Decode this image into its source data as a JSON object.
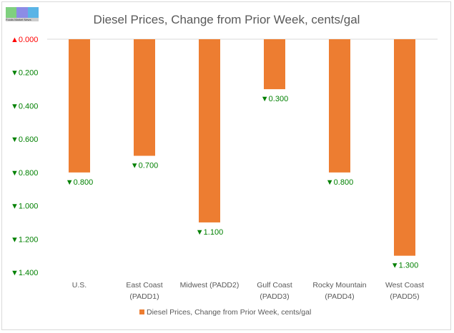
{
  "logo": {
    "text": "FMN",
    "subtext": "Foods Market News"
  },
  "chart_data": {
    "type": "bar",
    "title": "Diesel Prices, Change from Prior Week, cents/gal",
    "categories": [
      [
        "U.S."
      ],
      [
        "East Coast",
        "(PADD1)"
      ],
      [
        "Midwest (PADD2)"
      ],
      [
        "Gulf Coast",
        "(PADD3)"
      ],
      [
        "Rocky Mountain",
        "(PADD4)"
      ],
      [
        "West Coast",
        "(PADD5)"
      ]
    ],
    "series": [
      {
        "name": "Diesel Prices, Change from Prior Week, cents/gal",
        "values": [
          -0.8,
          -0.7,
          -1.1,
          -0.3,
          -0.8,
          -1.3
        ],
        "color": "#ED7D31"
      }
    ],
    "data_labels": [
      "▼0.800",
      "▼0.700",
      "▼1.100",
      "▼0.300",
      "▼0.800",
      "▼1.300"
    ],
    "yticks": [
      0,
      -0.2,
      -0.4,
      -0.6,
      -0.8,
      -1.0,
      -1.2,
      -1.4
    ],
    "ytick_labels": [
      "▲0.000",
      "▼0.200",
      "▼0.400",
      "▼0.600",
      "▼0.800",
      "▼1.000",
      "▼1.200",
      "▼1.400"
    ],
    "ylim": [
      -1.4,
      0
    ],
    "legend": "bottom",
    "colors": {
      "up": "#FF0000",
      "down": "#008000",
      "axis": "#d9d9d9",
      "text": "#595959"
    }
  }
}
